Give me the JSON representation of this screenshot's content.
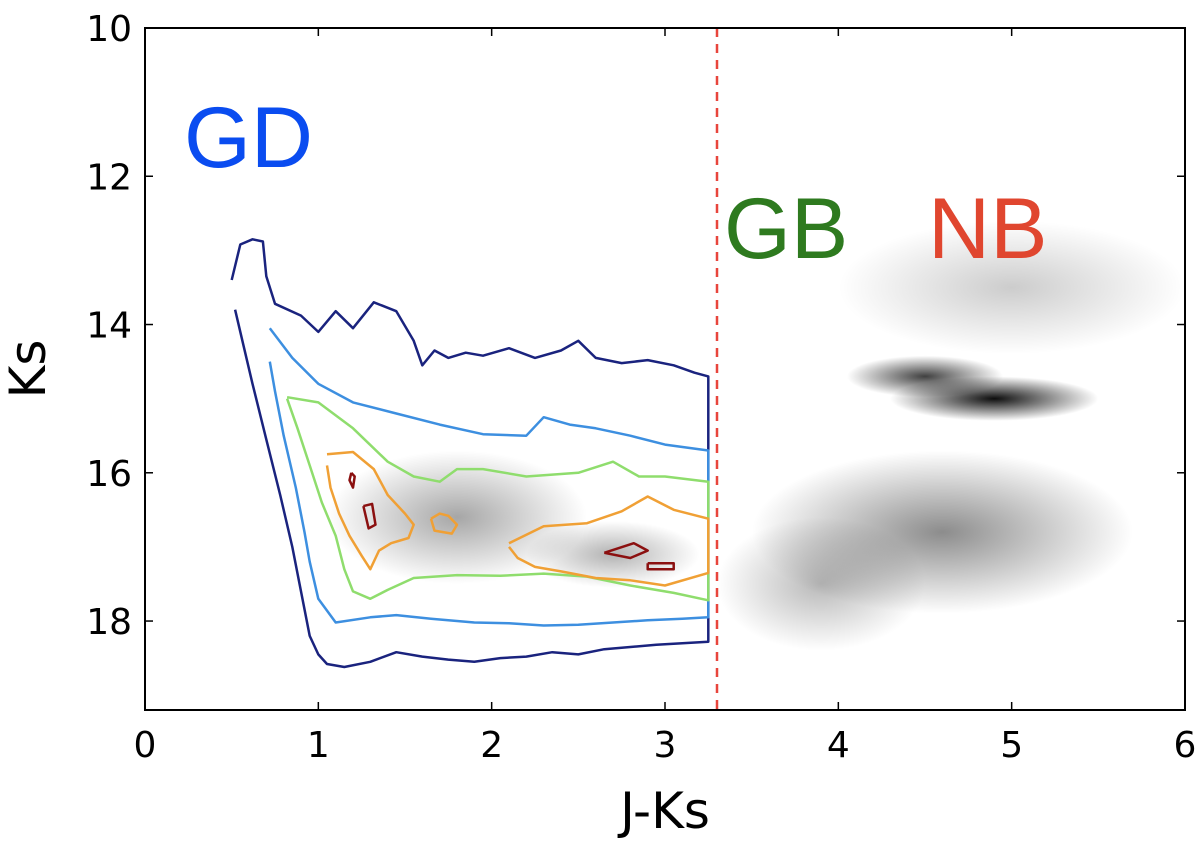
{
  "chart_data": {
    "type": "scatter",
    "subtype": "density-contour",
    "title": "",
    "xlabel": "J-Ks",
    "ylabel": "Ks",
    "xlim": [
      0,
      6
    ],
    "ylim": [
      10,
      19.2
    ],
    "y_inverted": true,
    "grid": false,
    "x_ticks": [
      0,
      1,
      2,
      3,
      4,
      5,
      6
    ],
    "x_tick_labels": [
      "0",
      "1",
      "2",
      "3",
      "4",
      "5",
      "6"
    ],
    "y_ticks": [
      10,
      12,
      14,
      16,
      18
    ],
    "y_tick_labels": [
      "10",
      "12",
      "14",
      "16",
      "18"
    ],
    "divider": {
      "x": 3.3,
      "color": "#e8453c",
      "style": "dashed"
    },
    "annotations": [
      {
        "text": "GD",
        "x": 0.95,
        "y": 11.55,
        "color": "#0a4cf0"
      },
      {
        "text": "GB",
        "x": 3.85,
        "y": 12.7,
        "color": "#2e7a1f"
      },
      {
        "text": "NB",
        "x": 4.85,
        "y": 12.7,
        "color": "#e0462f"
      }
    ],
    "density_clouds": [
      {
        "x": 1.8,
        "y": 16.6,
        "sx": 0.75,
        "sy": 0.9,
        "w": 0.35
      },
      {
        "x": 2.7,
        "y": 17.1,
        "sx": 0.5,
        "sy": 0.45,
        "w": 0.3
      },
      {
        "x": 4.9,
        "y": 15.0,
        "sx": 0.6,
        "sy": 0.3,
        "w": 0.95
      },
      {
        "x": 4.5,
        "y": 14.7,
        "sx": 0.45,
        "sy": 0.28,
        "w": 0.75
      },
      {
        "x": 4.6,
        "y": 16.8,
        "sx": 1.1,
        "sy": 1.1,
        "w": 0.45
      },
      {
        "x": 5.0,
        "y": 13.5,
        "sx": 1.0,
        "sy": 0.9,
        "w": 0.2
      },
      {
        "x": 3.9,
        "y": 17.5,
        "sx": 0.6,
        "sy": 0.9,
        "w": 0.28
      }
    ],
    "contours": [
      {
        "level": 1,
        "color": "#1a237e",
        "x": [
          0.5,
          0.55,
          0.62,
          0.68,
          0.7,
          0.75,
          0.9,
          1.0,
          1.1,
          1.2,
          1.32,
          1.45,
          1.55,
          1.6,
          1.67,
          1.75,
          1.85,
          1.95,
          2.1,
          2.25,
          2.4,
          2.5,
          2.6,
          2.75,
          2.9,
          3.05,
          3.17,
          3.25,
          3.25,
          3.1,
          2.95,
          2.8,
          2.65,
          2.5,
          2.35,
          2.2,
          2.05,
          1.9,
          1.75,
          1.6,
          1.45,
          1.3,
          1.15,
          1.05,
          1.0,
          0.95,
          0.9,
          0.85,
          0.78,
          0.7,
          0.62,
          0.57,
          0.52
        ],
        "y": [
          13.4,
          12.92,
          12.85,
          12.88,
          13.35,
          13.72,
          13.88,
          14.1,
          13.82,
          14.05,
          13.7,
          13.82,
          14.22,
          14.55,
          14.35,
          14.45,
          14.38,
          14.42,
          14.32,
          14.45,
          14.35,
          14.22,
          14.45,
          14.52,
          14.48,
          14.55,
          14.65,
          14.7,
          18.28,
          18.3,
          18.32,
          18.35,
          18.38,
          18.45,
          18.42,
          18.48,
          18.5,
          18.55,
          18.52,
          18.48,
          18.42,
          18.55,
          18.62,
          18.58,
          18.45,
          18.2,
          17.6,
          17.0,
          16.3,
          15.55,
          14.8,
          14.3,
          13.8
        ]
      },
      {
        "level": 2,
        "color": "#3d8fe0",
        "x": [
          0.72,
          0.85,
          1.0,
          1.2,
          1.45,
          1.7,
          1.95,
          2.2,
          2.3,
          2.45,
          2.6,
          2.8,
          3.0,
          3.25,
          3.25,
          3.1,
          2.9,
          2.7,
          2.5,
          2.3,
          2.1,
          1.9,
          1.65,
          1.45,
          1.3,
          1.1,
          1.0,
          0.95,
          0.92,
          0.87,
          0.8,
          0.75,
          0.72
        ],
        "y": [
          14.05,
          14.45,
          14.8,
          15.05,
          15.2,
          15.35,
          15.48,
          15.5,
          15.25,
          15.35,
          15.4,
          15.5,
          15.62,
          15.7,
          17.95,
          17.97,
          17.99,
          18.02,
          18.05,
          18.06,
          18.03,
          18.02,
          17.97,
          17.92,
          17.95,
          18.02,
          17.7,
          17.2,
          16.8,
          16.2,
          15.5,
          14.9,
          14.5
        ]
      },
      {
        "level": 3,
        "color": "#8fdd6d",
        "x": [
          0.82,
          1.0,
          1.2,
          1.4,
          1.55,
          1.7,
          1.8,
          1.95,
          2.2,
          2.5,
          2.7,
          2.85,
          3.0,
          3.25,
          3.25,
          3.05,
          2.8,
          2.55,
          2.3,
          2.05,
          1.8,
          1.55,
          1.4,
          1.3,
          1.2,
          1.15,
          1.1,
          1.02,
          0.95,
          0.88,
          0.82
        ],
        "y": [
          14.98,
          15.05,
          15.4,
          15.85,
          16.05,
          16.12,
          15.95,
          15.95,
          16.05,
          16.0,
          15.85,
          16.05,
          16.05,
          16.12,
          17.72,
          17.62,
          17.52,
          17.4,
          17.36,
          17.39,
          17.38,
          17.42,
          17.58,
          17.7,
          17.6,
          17.3,
          16.85,
          16.4,
          15.9,
          15.4,
          15.0
        ]
      },
      {
        "level": 4,
        "color": "#f0a035",
        "x": [
          1.05,
          1.2,
          1.32,
          1.4,
          1.5,
          1.55,
          1.52,
          1.42,
          1.35,
          1.3,
          1.25,
          1.18,
          1.12,
          1.07,
          1.05
        ],
        "y": [
          15.75,
          15.72,
          15.95,
          16.3,
          16.55,
          16.7,
          16.88,
          16.95,
          17.05,
          17.3,
          17.12,
          16.85,
          16.55,
          16.2,
          15.9
        ]
      },
      {
        "level": 4,
        "color": "#f0a035",
        "x": [
          1.65,
          1.7,
          1.75,
          1.8,
          1.77,
          1.72,
          1.67,
          1.65
        ],
        "y": [
          16.62,
          16.55,
          16.58,
          16.7,
          16.82,
          16.8,
          16.78,
          16.62
        ]
      },
      {
        "level": 4,
        "color": "#f0a035",
        "x": [
          2.1,
          2.3,
          2.55,
          2.75,
          2.9,
          3.05,
          3.25,
          3.25,
          3.0,
          2.8,
          2.6,
          2.4,
          2.25,
          2.15,
          2.1
        ],
        "y": [
          16.95,
          16.72,
          16.68,
          16.52,
          16.32,
          16.5,
          16.62,
          17.35,
          17.52,
          17.45,
          17.42,
          17.33,
          17.27,
          17.15,
          17.0
        ]
      },
      {
        "level": 5,
        "color": "#8b1010",
        "x": [
          1.19,
          1.21,
          1.2,
          1.18,
          1.19
        ],
        "y": [
          16.0,
          16.05,
          16.2,
          16.1,
          16.0
        ]
      },
      {
        "level": 5,
        "color": "#8b1010",
        "x": [
          1.26,
          1.31,
          1.33,
          1.29,
          1.26
        ],
        "y": [
          16.45,
          16.42,
          16.7,
          16.75,
          16.45
        ]
      },
      {
        "level": 5,
        "color": "#8b1010",
        "x": [
          2.65,
          2.82,
          2.9,
          2.8,
          2.65
        ],
        "y": [
          17.08,
          16.95,
          17.05,
          17.15,
          17.08
        ]
      },
      {
        "level": 5,
        "color": "#8b1010",
        "x": [
          2.9,
          3.05,
          3.05,
          2.9,
          2.9
        ],
        "y": [
          17.22,
          17.22,
          17.3,
          17.3,
          17.22
        ]
      }
    ]
  }
}
